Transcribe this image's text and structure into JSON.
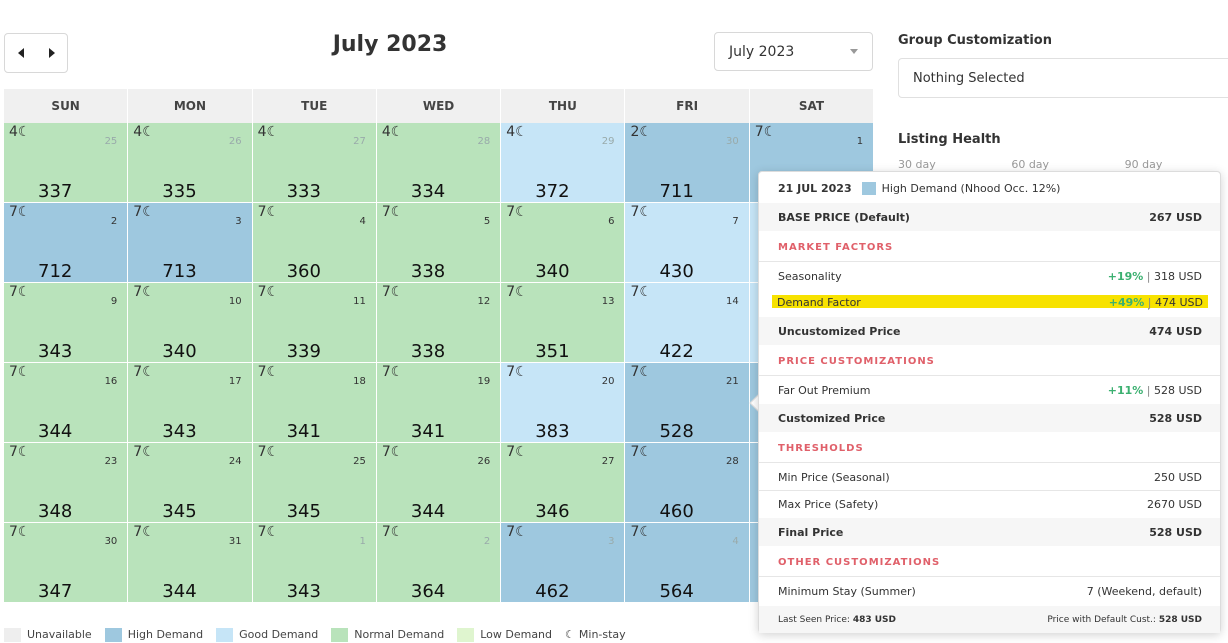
{
  "header": {
    "month_title": "July 2023",
    "month_select_value": "July 2023"
  },
  "weekdays": [
    "SUN",
    "MON",
    "TUE",
    "WED",
    "THU",
    "FRI",
    "SAT"
  ],
  "calendar": [
    {
      "day": "25",
      "price": "337",
      "demand": "normal",
      "other": true,
      "minstay": "4☾"
    },
    {
      "day": "26",
      "price": "335",
      "demand": "normal",
      "other": true,
      "minstay": "4☾"
    },
    {
      "day": "27",
      "price": "333",
      "demand": "normal",
      "other": true,
      "minstay": "4☾"
    },
    {
      "day": "28",
      "price": "334",
      "demand": "normal",
      "other": true,
      "minstay": "4☾"
    },
    {
      "day": "29",
      "price": "372",
      "demand": "good",
      "other": true,
      "minstay": "4☾"
    },
    {
      "day": "30",
      "price": "711",
      "demand": "high",
      "other": true,
      "minstay": "2☾"
    },
    {
      "day": "1",
      "price": "",
      "demand": "high",
      "other": false,
      "minstay": "7☾"
    },
    {
      "day": "2",
      "price": "712",
      "demand": "high",
      "other": false,
      "minstay": "7☾"
    },
    {
      "day": "3",
      "price": "713",
      "demand": "high",
      "other": false,
      "minstay": "7☾"
    },
    {
      "day": "4",
      "price": "360",
      "demand": "normal",
      "other": false,
      "minstay": "7☾"
    },
    {
      "day": "5",
      "price": "338",
      "demand": "normal",
      "other": false,
      "minstay": "7☾"
    },
    {
      "day": "6",
      "price": "340",
      "demand": "normal",
      "other": false,
      "minstay": "7☾"
    },
    {
      "day": "7",
      "price": "430",
      "demand": "good",
      "other": false,
      "minstay": "7☾"
    },
    {
      "day": "",
      "price": "",
      "demand": "good",
      "other": false,
      "minstay": ""
    },
    {
      "day": "9",
      "price": "343",
      "demand": "normal",
      "other": false,
      "minstay": "7☾"
    },
    {
      "day": "10",
      "price": "340",
      "demand": "normal",
      "other": false,
      "minstay": "7☾"
    },
    {
      "day": "11",
      "price": "339",
      "demand": "normal",
      "other": false,
      "minstay": "7☾"
    },
    {
      "day": "12",
      "price": "338",
      "demand": "normal",
      "other": false,
      "minstay": "7☾"
    },
    {
      "day": "13",
      "price": "351",
      "demand": "normal",
      "other": false,
      "minstay": "7☾"
    },
    {
      "day": "14",
      "price": "422",
      "demand": "good",
      "other": false,
      "minstay": "7☾"
    },
    {
      "day": "",
      "price": "",
      "demand": "good",
      "other": false,
      "minstay": ""
    },
    {
      "day": "16",
      "price": "344",
      "demand": "normal",
      "other": false,
      "minstay": "7☾"
    },
    {
      "day": "17",
      "price": "343",
      "demand": "normal",
      "other": false,
      "minstay": "7☾"
    },
    {
      "day": "18",
      "price": "341",
      "demand": "normal",
      "other": false,
      "minstay": "7☾"
    },
    {
      "day": "19",
      "price": "341",
      "demand": "normal",
      "other": false,
      "minstay": "7☾"
    },
    {
      "day": "20",
      "price": "383",
      "demand": "good",
      "other": false,
      "minstay": "7☾"
    },
    {
      "day": "21",
      "price": "528",
      "demand": "high",
      "other": false,
      "minstay": "7☾"
    },
    {
      "day": "",
      "price": "",
      "demand": "high",
      "other": false,
      "minstay": ""
    },
    {
      "day": "23",
      "price": "348",
      "demand": "normal",
      "other": false,
      "minstay": "7☾"
    },
    {
      "day": "24",
      "price": "345",
      "demand": "normal",
      "other": false,
      "minstay": "7☾"
    },
    {
      "day": "25",
      "price": "345",
      "demand": "normal",
      "other": false,
      "minstay": "7☾"
    },
    {
      "day": "26",
      "price": "344",
      "demand": "normal",
      "other": false,
      "minstay": "7☾"
    },
    {
      "day": "27",
      "price": "346",
      "demand": "normal",
      "other": false,
      "minstay": "7☾"
    },
    {
      "day": "28",
      "price": "460",
      "demand": "high",
      "other": false,
      "minstay": "7☾"
    },
    {
      "day": "",
      "price": "",
      "demand": "high",
      "other": false,
      "minstay": ""
    },
    {
      "day": "30",
      "price": "347",
      "demand": "normal",
      "other": false,
      "minstay": "7☾"
    },
    {
      "day": "31",
      "price": "344",
      "demand": "normal",
      "other": false,
      "minstay": "7☾"
    },
    {
      "day": "1",
      "price": "343",
      "demand": "normal",
      "other": true,
      "minstay": "7☾"
    },
    {
      "day": "2",
      "price": "364",
      "demand": "normal",
      "other": true,
      "minstay": "7☾"
    },
    {
      "day": "3",
      "price": "462",
      "demand": "high",
      "other": true,
      "minstay": "7☾"
    },
    {
      "day": "4",
      "price": "564",
      "demand": "high",
      "other": true,
      "minstay": "7☾"
    },
    {
      "day": "",
      "price": "",
      "demand": "high",
      "other": false,
      "minstay": ""
    }
  ],
  "legend": [
    {
      "label": "Unavailable",
      "color": "#eeeeee"
    },
    {
      "label": "High Demand",
      "color": "#9ec8df"
    },
    {
      "label": "Good Demand",
      "color": "#c6e5f7"
    },
    {
      "label": "Normal Demand",
      "color": "#b9e3bb"
    },
    {
      "label": "Low Demand",
      "color": "#dff5cf"
    }
  ],
  "legend_minstay": "Min-stay",
  "sidebar": {
    "group_title": "Group Customization",
    "group_value": "Nothing Selected",
    "health_title": "Listing Health",
    "health_tabs": [
      "30 day",
      "60 day",
      "90 day"
    ]
  },
  "popup": {
    "date": "21 JUL 2023",
    "demand_label": "High Demand (Nhood Occ. 12%)",
    "base_label": "BASE PRICE (Default)",
    "base_value": "267 USD",
    "market_factors": "MARKET FACTORS",
    "seasonality_label": "Seasonality",
    "seasonality_pct": "+19%",
    "seasonality_value": "318 USD",
    "demand_factor_label": "Demand Factor",
    "demand_factor_pct": "+49%",
    "demand_factor_value": "474 USD",
    "uncustomized_label": "Uncustomized Price",
    "uncustomized_value": "474 USD",
    "price_customizations": "PRICE CUSTOMIZATIONS",
    "far_out_label": "Far Out Premium",
    "far_out_pct": "+11%",
    "far_out_value": "528 USD",
    "customized_label": "Customized Price",
    "customized_value": "528 USD",
    "thresholds": "THRESHOLDS",
    "min_label": "Min Price (Seasonal)",
    "min_value": "250 USD",
    "max_label": "Max Price (Safety)",
    "max_value": "2670 USD",
    "final_label": "Final Price",
    "final_value": "528 USD",
    "other_customizations": "OTHER CUSTOMIZATIONS",
    "minstay_label": "Minimum Stay (Summer)",
    "minstay_value": "7 (Weekend, default)",
    "last_seen_label": "Last Seen Price:",
    "last_seen_value": "483 USD",
    "default_cust_label": "Price with Default Cust.:",
    "default_cust_value": "528 USD",
    "separator": "|"
  }
}
